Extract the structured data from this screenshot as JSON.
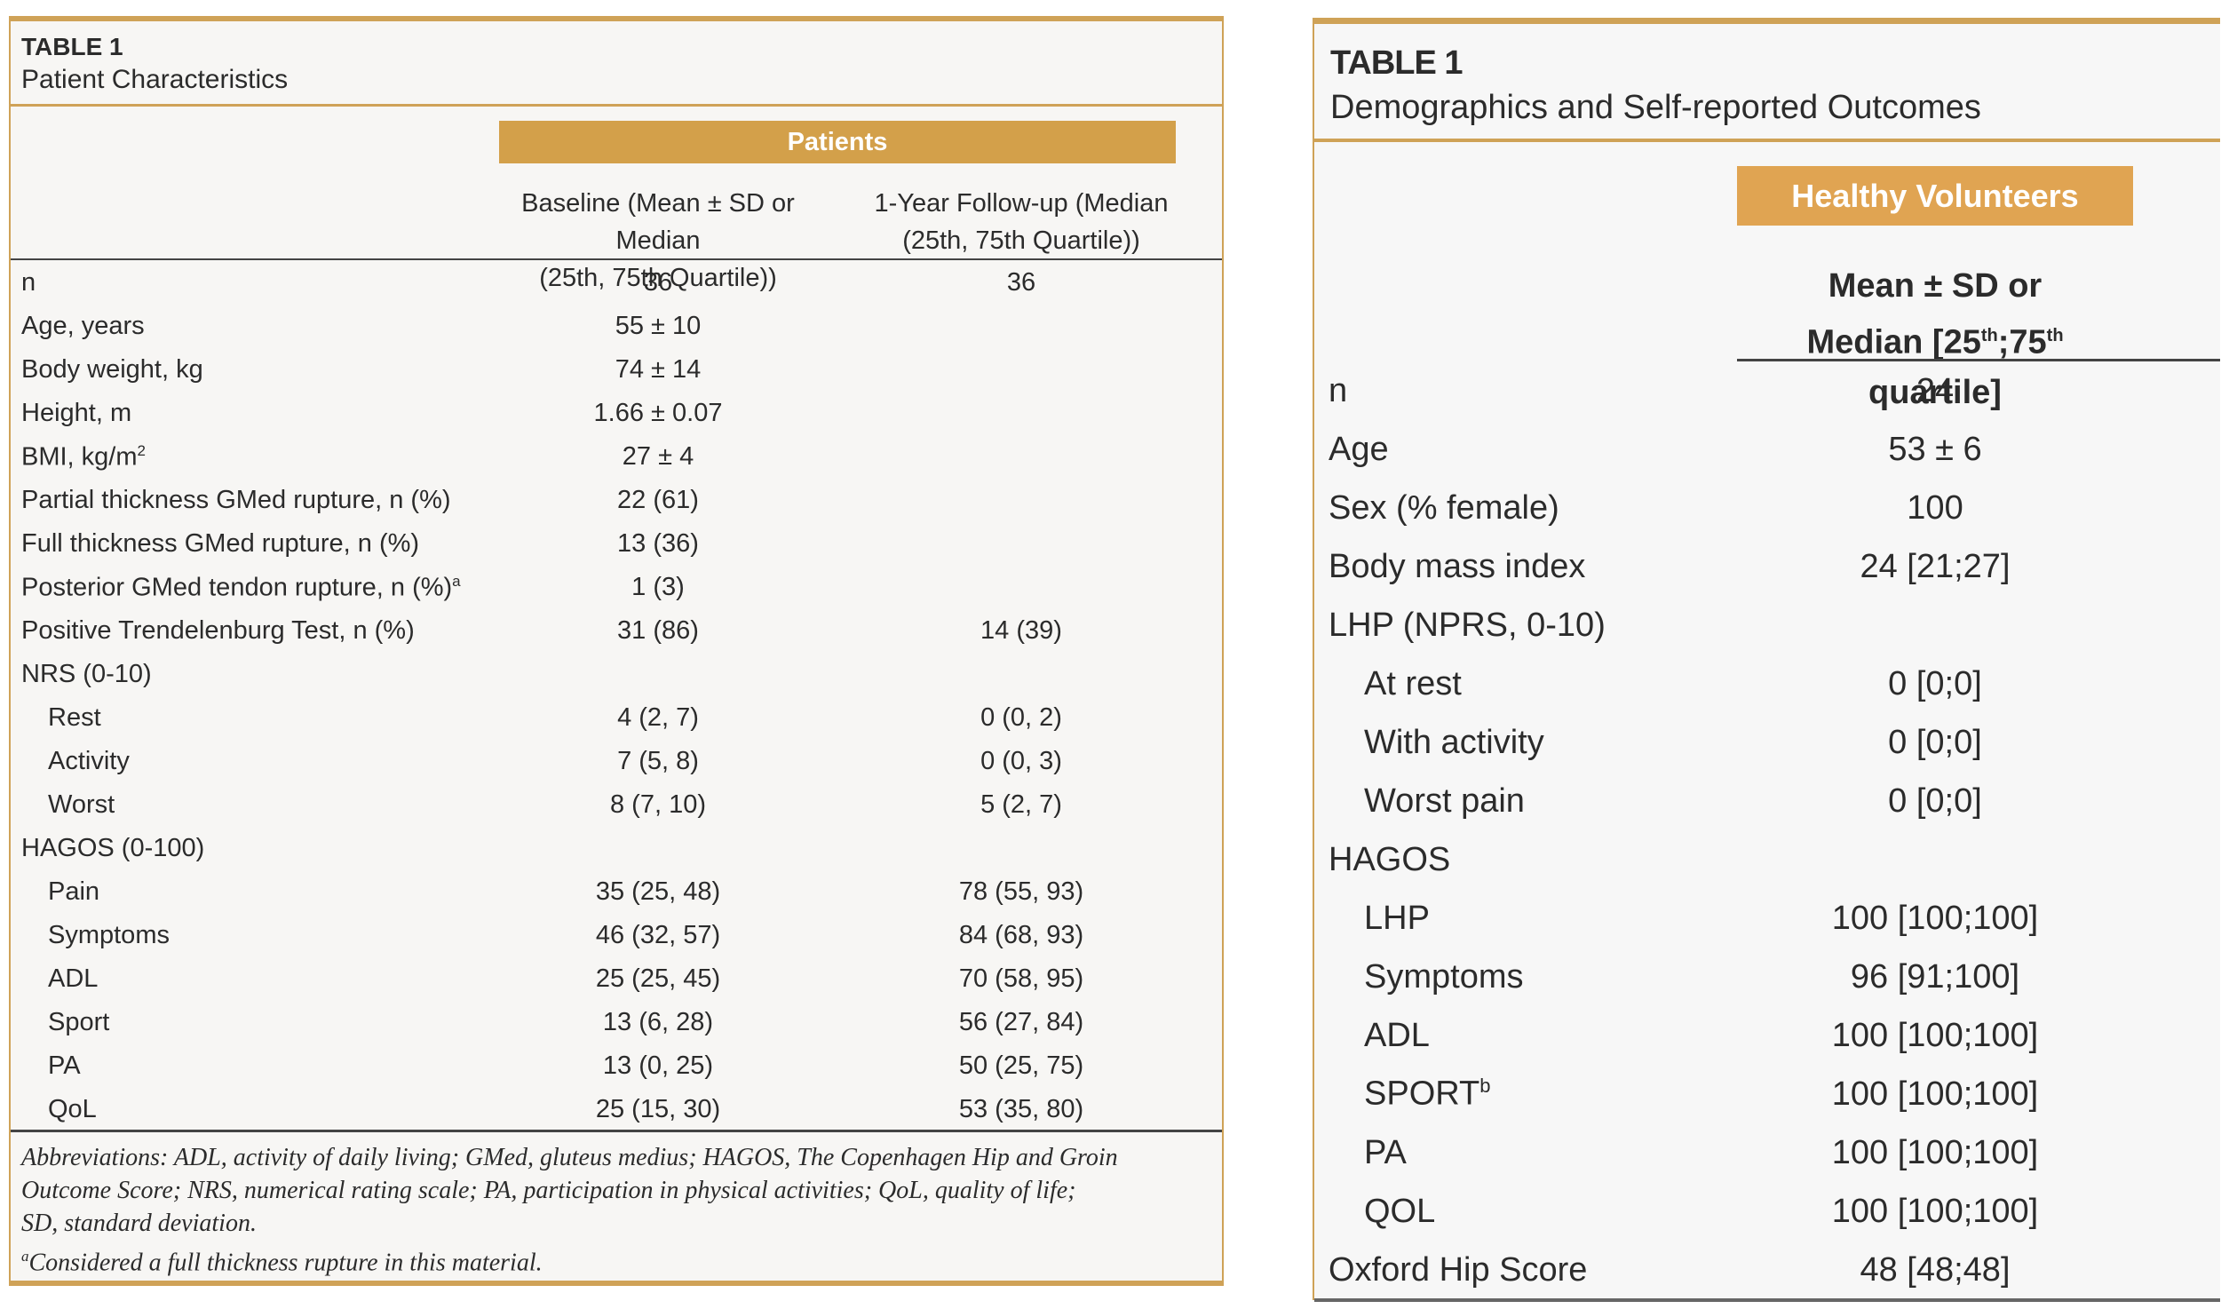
{
  "left_table": {
    "number": "TABLE 1",
    "title": "Patient Characteristics",
    "group_header": "Patients",
    "col1_header": [
      "Baseline (Mean ± SD or Median",
      "(25th, 75th Quartile))"
    ],
    "col2_header": [
      "1-Year Follow-up (Median",
      "(25th, 75th Quartile))"
    ],
    "rows": [
      {
        "label": "n",
        "sup": "",
        "indent": false,
        "baseline": "36",
        "followup": "36"
      },
      {
        "label": "Age, years",
        "sup": "",
        "indent": false,
        "baseline": "55 ± 10",
        "followup": ""
      },
      {
        "label": "Body weight, kg",
        "sup": "",
        "indent": false,
        "baseline": "74 ± 14",
        "followup": ""
      },
      {
        "label": "Height, m",
        "sup": "",
        "indent": false,
        "baseline": "1.66 ± 0.07",
        "followup": ""
      },
      {
        "label": "BMI, kg/m",
        "sup": "2",
        "indent": false,
        "baseline": "27 ± 4",
        "followup": ""
      },
      {
        "label": "Partial thickness GMed rupture, n (%)",
        "sup": "",
        "indent": false,
        "baseline": "22 (61)",
        "followup": ""
      },
      {
        "label": "Full thickness GMed rupture, n (%)",
        "sup": "",
        "indent": false,
        "baseline": "13 (36)",
        "followup": ""
      },
      {
        "label": "Posterior GMed tendon rupture, n (%)",
        "sup": "a",
        "indent": false,
        "baseline": "1 (3)",
        "followup": ""
      },
      {
        "label": "Positive Trendelenburg Test, n (%)",
        "sup": "",
        "indent": false,
        "baseline": "31 (86)",
        "followup": "14 (39)"
      },
      {
        "label": "NRS (0-10)",
        "sup": "",
        "indent": false,
        "baseline": "",
        "followup": ""
      },
      {
        "label": "Rest",
        "sup": "",
        "indent": true,
        "baseline": "4 (2, 7)",
        "followup": "0 (0, 2)"
      },
      {
        "label": "Activity",
        "sup": "",
        "indent": true,
        "baseline": "7 (5, 8)",
        "followup": "0 (0, 3)"
      },
      {
        "label": "Worst",
        "sup": "",
        "indent": true,
        "baseline": "8 (7, 10)",
        "followup": "5 (2, 7)"
      },
      {
        "label": "HAGOS (0-100)",
        "sup": "",
        "indent": false,
        "baseline": "",
        "followup": ""
      },
      {
        "label": "Pain",
        "sup": "",
        "indent": true,
        "baseline": "35 (25, 48)",
        "followup": "78 (55, 93)"
      },
      {
        "label": "Symptoms",
        "sup": "",
        "indent": true,
        "baseline": "46 (32, 57)",
        "followup": "84 (68, 93)"
      },
      {
        "label": "ADL",
        "sup": "",
        "indent": true,
        "baseline": "25 (25, 45)",
        "followup": "70 (58, 95)"
      },
      {
        "label": "Sport",
        "sup": "",
        "indent": true,
        "baseline": "13 (6, 28)",
        "followup": "56 (27, 84)"
      },
      {
        "label": "PA",
        "sup": "",
        "indent": true,
        "baseline": "13 (0, 25)",
        "followup": "50 (25, 75)"
      },
      {
        "label": "QoL",
        "sup": "",
        "indent": true,
        "baseline": "25 (15, 30)",
        "followup": "53 (35, 80)"
      }
    ],
    "footnote_lines": [
      "Abbreviations: ADL, activity of daily living; GMed, gluteus medius; HAGOS, The Copenhagen Hip and Groin",
      "Outcome Score; NRS, numerical rating scale; PA, participation in physical activities; QoL, quality of life;",
      "SD, standard deviation."
    ],
    "footnote_a_mark": "a",
    "footnote_a": "Considered a full thickness rupture in this material."
  },
  "right_table": {
    "number": "TABLE 1",
    "title": "Demographics and Self-reported Outcomes",
    "group_header": "Healthy Volunteers",
    "col_header_line1": "Mean ± SD or",
    "col_header_line2": {
      "a": "Median [25",
      "b": "th",
      "c": ";75",
      "d": "th",
      "e": " quartile]"
    },
    "rows": [
      {
        "label": "n",
        "sup": "",
        "indent": false,
        "value": "24"
      },
      {
        "label": "Age",
        "sup": "",
        "indent": false,
        "value": "53 ± 6"
      },
      {
        "label": "Sex (% female)",
        "sup": "",
        "indent": false,
        "value": "100"
      },
      {
        "label": "Body mass index",
        "sup": "",
        "indent": false,
        "value": "24 [21;27]"
      },
      {
        "label": "LHP (NPRS, 0-10)",
        "sup": "",
        "indent": false,
        "value": ""
      },
      {
        "label": "At rest",
        "sup": "",
        "indent": true,
        "value": "0 [0;0]"
      },
      {
        "label": "With activity",
        "sup": "",
        "indent": true,
        "value": "0 [0;0]"
      },
      {
        "label": "Worst pain",
        "sup": "",
        "indent": true,
        "value": "0 [0;0]"
      },
      {
        "label": "HAGOS",
        "sup": "",
        "indent": false,
        "value": ""
      },
      {
        "label": "LHP",
        "sup": "",
        "indent": true,
        "value": "100 [100;100]"
      },
      {
        "label": "Symptoms",
        "sup": "",
        "indent": true,
        "value": "96 [91;100]"
      },
      {
        "label": "ADL",
        "sup": "",
        "indent": true,
        "value": "100 [100;100]"
      },
      {
        "label": "SPORT",
        "sup": "b",
        "indent": true,
        "value": "100 [100;100]"
      },
      {
        "label": "PA",
        "sup": "",
        "indent": true,
        "value": "100 [100;100]"
      },
      {
        "label": "QOL",
        "sup": "",
        "indent": true,
        "value": "100 [100;100]"
      },
      {
        "label": "Oxford Hip Score",
        "sup": "",
        "indent": false,
        "value": "48 [48;48]"
      }
    ]
  },
  "colors": {
    "accent": "#cfa257",
    "band": "#d3a04a",
    "band_right": "#e0a452"
  }
}
